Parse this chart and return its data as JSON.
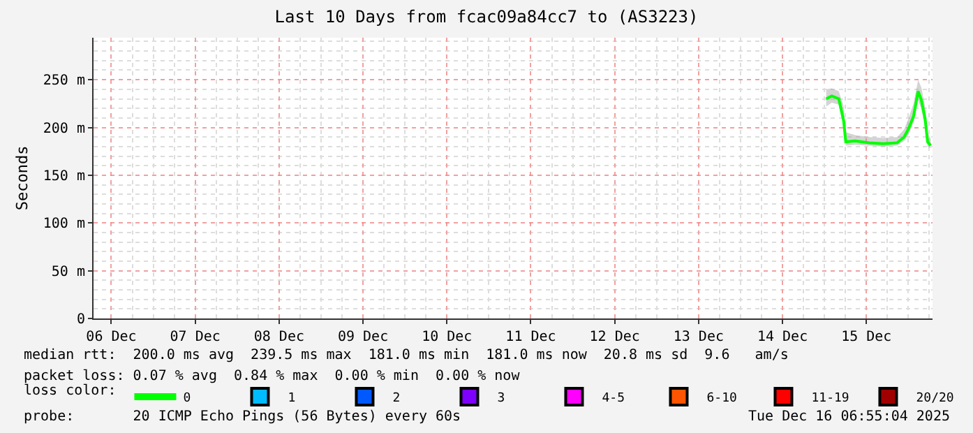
{
  "chart_data": {
    "type": "line",
    "title": "Last 10 Days from fcac09a84cc7 to (AS3223)",
    "ylabel": "Seconds",
    "legend_title": "loss color:",
    "x": [
      "2025-12-15T00:30",
      "2025-12-15T02:06",
      "2025-12-15T04:06",
      "2025-12-15T05:30",
      "2025-12-15T06:06",
      "2025-12-15T08:48",
      "2025-12-15T12:48",
      "2025-12-15T16:48",
      "2025-12-15T20:48",
      "2025-12-15T22:48",
      "2025-12-16T00:06",
      "2025-12-16T01:30",
      "2025-12-16T02:48",
      "2025-12-16T03:42",
      "2025-12-16T04:48",
      "2025-12-16T05:30",
      "2025-12-16T06:24"
    ],
    "series": [
      {
        "name": "0",
        "color": "#00ff00",
        "values": [
          230,
          233,
          230,
          207,
          185,
          186,
          184,
          183,
          184,
          190,
          199,
          212,
          238,
          229,
          209,
          185,
          181
        ],
        "lower": [
          222,
          226,
          224,
          200,
          181,
          182,
          181,
          180,
          181,
          186,
          193,
          205,
          228,
          220,
          200,
          180,
          178
        ],
        "upper": [
          240,
          241,
          238,
          222,
          195,
          192,
          190,
          189,
          190,
          198,
          210,
          225,
          250,
          242,
          222,
          195,
          188
        ]
      },
      {
        "name": "1",
        "color": "#00bbff",
        "values": [
          null,
          null,
          null,
          null,
          null,
          null,
          null,
          null,
          null,
          null,
          null,
          null,
          null,
          null,
          null,
          null,
          null
        ]
      },
      {
        "name": "2",
        "color": "#0059ff",
        "values": [
          null,
          null,
          null,
          null,
          null,
          null,
          null,
          null,
          null,
          null,
          null,
          null,
          null,
          null,
          null,
          null,
          null
        ]
      },
      {
        "name": "3",
        "color": "#7e00ff",
        "values": [
          null,
          null,
          null,
          null,
          null,
          null,
          null,
          null,
          null,
          null,
          null,
          null,
          null,
          null,
          null,
          null,
          null
        ]
      },
      {
        "name": "4-5",
        "color": "#ff00ff",
        "values": [
          null,
          null,
          null,
          null,
          null,
          null,
          null,
          null,
          null,
          null,
          null,
          null,
          null,
          null,
          null,
          null,
          null
        ]
      },
      {
        "name": "6-10",
        "color": "#ff5500",
        "values": [
          null,
          null,
          null,
          null,
          null,
          null,
          null,
          null,
          null,
          null,
          null,
          null,
          null,
          null,
          null,
          null,
          null
        ]
      },
      {
        "name": "11-19",
        "color": "#ff0000",
        "values": [
          null,
          null,
          null,
          null,
          null,
          null,
          null,
          null,
          null,
          null,
          null,
          null,
          null,
          null,
          null,
          null,
          null
        ]
      },
      {
        "name": "20/20",
        "color": "#a10000",
        "values": [
          null,
          null,
          null,
          null,
          null,
          null,
          null,
          null,
          null,
          null,
          null,
          null,
          null,
          null,
          null,
          null,
          null
        ]
      }
    ],
    "xlim": [
      "2025-12-06T06:55",
      "2025-12-16T06:55"
    ],
    "xticks": [
      {
        "value": "2025-12-06T12:00",
        "label": "06 Dec"
      },
      {
        "value": "2025-12-07T12:00",
        "label": "07 Dec"
      },
      {
        "value": "2025-12-08T12:00",
        "label": "08 Dec"
      },
      {
        "value": "2025-12-09T12:00",
        "label": "09 Dec"
      },
      {
        "value": "2025-12-10T12:00",
        "label": "10 Dec"
      },
      {
        "value": "2025-12-11T12:00",
        "label": "11 Dec"
      },
      {
        "value": "2025-12-12T12:00",
        "label": "12 Dec"
      },
      {
        "value": "2025-12-13T12:00",
        "label": "13 Dec"
      },
      {
        "value": "2025-12-14T12:00",
        "label": "14 Dec"
      },
      {
        "value": "2025-12-15T12:00",
        "label": "15 Dec"
      }
    ],
    "ylim": [
      0,
      294
    ],
    "yticks": [
      0,
      {
        "value": 50,
        "label": "50 m"
      },
      {
        "value": 100,
        "label": "100 m"
      },
      {
        "value": 150,
        "label": "150 m"
      },
      {
        "value": 200,
        "label": "200 m"
      },
      {
        "value": 250,
        "label": "250 m"
      }
    ],
    "grid": true,
    "legend": "bottom",
    "marker": "none",
    "line_style": "solid",
    "annotations": [
      "median rtt:  200.0 ms avg  239.5 ms max  181.0 ms min  181.0 ms now  20.8 ms sd  9.6   am/s",
      "packet loss: 0.07 % avg  0.84 % max  0.00 % min  0.00 % now",
      "probe:       20 ICMP Echo Pings (56 Bytes) every 60s",
      "Tue Dec 16 06:55:04 2025"
    ]
  }
}
